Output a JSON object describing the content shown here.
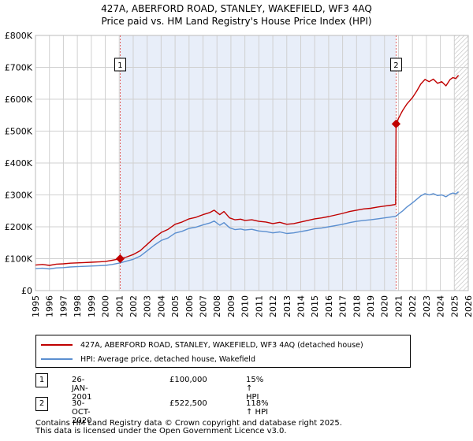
{
  "title_line1": "427A, ABERFORD ROAD, STANLEY, WAKEFIELD, WF3 4AQ",
  "title_line2": "Price paid vs. HM Land Registry's House Price Index (HPI)",
  "colors": {
    "property": "#c00000",
    "hpi": "#5b8fd0",
    "shade": "#e8eef9",
    "grid": "#d0d0d0",
    "vline": "#e06060"
  },
  "chart_data": {
    "type": "line",
    "xlim": [
      1995,
      2026
    ],
    "ylim": [
      0,
      800000
    ],
    "x_ticks": [
      "1995",
      "1996",
      "1997",
      "1998",
      "1999",
      "2000",
      "2001",
      "2002",
      "2003",
      "2004",
      "2005",
      "2006",
      "2007",
      "2008",
      "2009",
      "2010",
      "2011",
      "2012",
      "2013",
      "2014",
      "2015",
      "2016",
      "2017",
      "2018",
      "2019",
      "2020",
      "2021",
      "2022",
      "2023",
      "2024",
      "2025",
      "2026"
    ],
    "y_ticks": [
      {
        "value": 0,
        "label": "£0"
      },
      {
        "value": 100000,
        "label": "£100K"
      },
      {
        "value": 200000,
        "label": "£200K"
      },
      {
        "value": 300000,
        "label": "£300K"
      },
      {
        "value": 400000,
        "label": "£400K"
      },
      {
        "value": 500000,
        "label": "£500K"
      },
      {
        "value": 600000,
        "label": "£600K"
      },
      {
        "value": 700000,
        "label": "£700K"
      },
      {
        "value": 800000,
        "label": "£800K"
      }
    ],
    "shaded_range": [
      2001.07,
      2020.83
    ],
    "hatched_from": 2025.0,
    "series": [
      {
        "name": "427A, ABERFORD ROAD, STANLEY, WAKEFIELD, WF3 4AQ (detached house)",
        "color": "#c00000",
        "points": [
          [
            1995.0,
            80000
          ],
          [
            1995.5,
            82000
          ],
          [
            1996.0,
            79000
          ],
          [
            1996.5,
            83000
          ],
          [
            1997.0,
            84000
          ],
          [
            1997.5,
            86000
          ],
          [
            1998.0,
            87000
          ],
          [
            1998.5,
            88000
          ],
          [
            1999.0,
            89000
          ],
          [
            1999.5,
            90000
          ],
          [
            2000.0,
            91000
          ],
          [
            2000.5,
            95000
          ],
          [
            2001.07,
            100000
          ],
          [
            2001.5,
            105000
          ],
          [
            2002.0,
            113000
          ],
          [
            2002.5,
            125000
          ],
          [
            2003.0,
            145000
          ],
          [
            2003.5,
            165000
          ],
          [
            2004.0,
            182000
          ],
          [
            2004.5,
            192000
          ],
          [
            2005.0,
            208000
          ],
          [
            2005.5,
            215000
          ],
          [
            2006.0,
            225000
          ],
          [
            2006.5,
            230000
          ],
          [
            2007.0,
            238000
          ],
          [
            2007.5,
            245000
          ],
          [
            2007.8,
            252000
          ],
          [
            2008.2,
            238000
          ],
          [
            2008.5,
            248000
          ],
          [
            2008.9,
            228000
          ],
          [
            2009.3,
            222000
          ],
          [
            2009.7,
            224000
          ],
          [
            2010.0,
            220000
          ],
          [
            2010.5,
            222000
          ],
          [
            2011.0,
            217000
          ],
          [
            2011.5,
            215000
          ],
          [
            2012.0,
            210000
          ],
          [
            2012.5,
            214000
          ],
          [
            2013.0,
            208000
          ],
          [
            2013.5,
            210000
          ],
          [
            2014.0,
            215000
          ],
          [
            2014.5,
            220000
          ],
          [
            2015.0,
            225000
          ],
          [
            2015.5,
            228000
          ],
          [
            2016.0,
            232000
          ],
          [
            2016.5,
            237000
          ],
          [
            2017.0,
            242000
          ],
          [
            2017.5,
            248000
          ],
          [
            2018.0,
            252000
          ],
          [
            2018.5,
            256000
          ],
          [
            2019.0,
            258000
          ],
          [
            2019.5,
            262000
          ],
          [
            2020.0,
            265000
          ],
          [
            2020.5,
            268000
          ],
          [
            2020.8,
            270000
          ],
          [
            2020.83,
            522500
          ],
          [
            2021.0,
            540000
          ],
          [
            2021.3,
            565000
          ],
          [
            2021.6,
            585000
          ],
          [
            2022.0,
            605000
          ],
          [
            2022.3,
            625000
          ],
          [
            2022.6,
            648000
          ],
          [
            2022.9,
            662000
          ],
          [
            2023.2,
            655000
          ],
          [
            2023.5,
            663000
          ],
          [
            2023.8,
            650000
          ],
          [
            2024.1,
            655000
          ],
          [
            2024.4,
            642000
          ],
          [
            2024.7,
            662000
          ],
          [
            2024.9,
            668000
          ],
          [
            2025.1,
            665000
          ],
          [
            2025.3,
            675000
          ]
        ]
      },
      {
        "name": "HPI: Average price, detached house, Wakefield",
        "color": "#5b8fd0",
        "points": [
          [
            1995.0,
            69000
          ],
          [
            1995.5,
            70000
          ],
          [
            1996.0,
            68000
          ],
          [
            1996.5,
            71000
          ],
          [
            1997.0,
            72000
          ],
          [
            1997.5,
            74000
          ],
          [
            1998.0,
            75000
          ],
          [
            1998.5,
            76000
          ],
          [
            1999.0,
            77000
          ],
          [
            1999.5,
            78000
          ],
          [
            2000.0,
            79000
          ],
          [
            2000.5,
            82000
          ],
          [
            2001.07,
            87000
          ],
          [
            2001.5,
            92000
          ],
          [
            2002.0,
            98000
          ],
          [
            2002.5,
            108000
          ],
          [
            2003.0,
            125000
          ],
          [
            2003.5,
            142000
          ],
          [
            2004.0,
            157000
          ],
          [
            2004.5,
            165000
          ],
          [
            2005.0,
            180000
          ],
          [
            2005.5,
            186000
          ],
          [
            2006.0,
            195000
          ],
          [
            2006.5,
            199000
          ],
          [
            2007.0,
            206000
          ],
          [
            2007.5,
            212000
          ],
          [
            2007.8,
            218000
          ],
          [
            2008.2,
            205000
          ],
          [
            2008.5,
            213000
          ],
          [
            2008.9,
            197000
          ],
          [
            2009.3,
            191000
          ],
          [
            2009.7,
            193000
          ],
          [
            2010.0,
            190000
          ],
          [
            2010.5,
            192000
          ],
          [
            2011.0,
            187000
          ],
          [
            2011.5,
            185000
          ],
          [
            2012.0,
            181000
          ],
          [
            2012.5,
            184000
          ],
          [
            2013.0,
            179000
          ],
          [
            2013.5,
            181000
          ],
          [
            2014.0,
            185000
          ],
          [
            2014.5,
            189000
          ],
          [
            2015.0,
            194000
          ],
          [
            2015.5,
            196000
          ],
          [
            2016.0,
            200000
          ],
          [
            2016.5,
            204000
          ],
          [
            2017.0,
            208000
          ],
          [
            2017.5,
            213000
          ],
          [
            2018.0,
            217000
          ],
          [
            2018.5,
            220000
          ],
          [
            2019.0,
            222000
          ],
          [
            2019.5,
            225000
          ],
          [
            2020.0,
            228000
          ],
          [
            2020.5,
            231000
          ],
          [
            2020.83,
            233000
          ],
          [
            2021.0,
            240000
          ],
          [
            2021.3,
            250000
          ],
          [
            2021.6,
            262000
          ],
          [
            2022.0,
            275000
          ],
          [
            2022.3,
            286000
          ],
          [
            2022.6,
            297000
          ],
          [
            2022.9,
            304000
          ],
          [
            2023.2,
            300000
          ],
          [
            2023.5,
            304000
          ],
          [
            2023.8,
            298000
          ],
          [
            2024.1,
            300000
          ],
          [
            2024.4,
            294000
          ],
          [
            2024.7,
            303000
          ],
          [
            2024.9,
            306000
          ],
          [
            2025.1,
            303000
          ],
          [
            2025.3,
            310000
          ]
        ]
      }
    ],
    "markers": [
      {
        "label": "1",
        "x": 2001.07,
        "y": 100000
      },
      {
        "label": "2",
        "x": 2020.83,
        "y": 522500
      }
    ]
  },
  "legend": {
    "property_label": "427A, ABERFORD ROAD, STANLEY, WAKEFIELD, WF3 4AQ (detached house)",
    "hpi_label": "HPI: Average price, detached house, Wakefield"
  },
  "transactions": [
    {
      "badge": "1",
      "date": "26-JAN-2001",
      "price": "£100,000",
      "hpi": "15% ↑ HPI"
    },
    {
      "badge": "2",
      "date": "30-OCT-2020",
      "price": "£522,500",
      "hpi": "118% ↑ HPI"
    }
  ],
  "footer_line1": "Contains HM Land Registry data © Crown copyright and database right 2025.",
  "footer_line2": "This data is licensed under the Open Government Licence v3.0."
}
